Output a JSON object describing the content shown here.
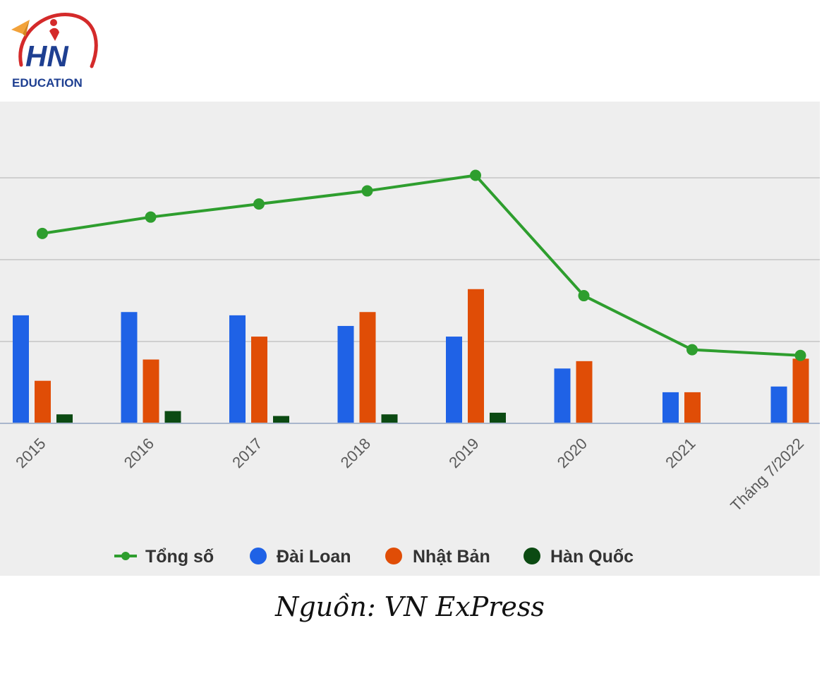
{
  "brand": {
    "logo_text": "HN",
    "logo_subtext": "EDUCATION"
  },
  "chart_data": {
    "type": "bar",
    "categories": [
      "2015",
      "2016",
      "2017",
      "2018",
      "2019",
      "2020",
      "2021",
      "Tháng 7/2022"
    ],
    "ylim": [
      0,
      300
    ],
    "grid": true,
    "legend_position": "bottom",
    "series": [
      {
        "name": "Tổng số",
        "type": "line",
        "color": "#2e9e2e",
        "values": [
          232,
          252,
          268,
          284,
          303,
          156,
          90,
          83
        ]
      },
      {
        "name": "Đài Loan",
        "type": "bar",
        "color": "#1f62e6",
        "values": [
          132,
          136,
          132,
          119,
          106,
          67,
          38,
          45
        ]
      },
      {
        "name": "Nhật Bản",
        "type": "bar",
        "color": "#e04d06",
        "values": [
          52,
          78,
          106,
          136,
          164,
          76,
          38,
          79
        ]
      },
      {
        "name": "Hàn Quốc",
        "type": "bar",
        "color": "#0b4a12",
        "values": [
          11,
          15,
          9,
          11,
          13,
          0,
          0,
          0
        ]
      }
    ]
  },
  "source_label": "Nguồn: VN ExPress"
}
